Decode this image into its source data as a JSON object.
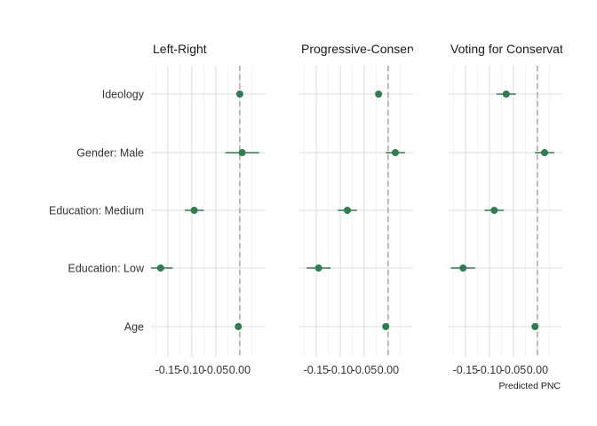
{
  "chart_data": {
    "type": "scatter",
    "subtype": "coefficient-plot-with-error-bars",
    "facets": [
      "Left-Right",
      "Progressive-Conservative",
      "Voting for Conservative"
    ],
    "categories": [
      "Ideology",
      "Gender: Male",
      "Education: Medium",
      "Education: Low",
      "Age"
    ],
    "x_ticks": [
      -0.15,
      -0.1,
      -0.05,
      0.0
    ],
    "x_tick_labels": [
      "-0.15",
      "-0.10",
      "-0.05",
      "0.00"
    ],
    "xlim": [
      -0.185,
      0.052
    ],
    "xlabel": "Predicted PNC",
    "reference_line": 0,
    "point_color": "#2e7d4f",
    "grid": true,
    "series": [
      {
        "values": [
          {
            "estimate": 0.0,
            "low": -0.005,
            "high": 0.005
          },
          {
            "estimate": 0.005,
            "low": -0.03,
            "high": 0.04
          },
          {
            "estimate": -0.095,
            "low": -0.115,
            "high": -0.075
          },
          {
            "estimate": -0.165,
            "low": -0.19,
            "high": -0.14
          },
          {
            "estimate": -0.003,
            "low": -0.008,
            "high": 0.002
          }
        ]
      },
      {
        "values": [
          {
            "estimate": -0.02,
            "low": -0.025,
            "high": -0.015
          },
          {
            "estimate": 0.015,
            "low": -0.005,
            "high": 0.035
          },
          {
            "estimate": -0.085,
            "low": -0.105,
            "high": -0.065
          },
          {
            "estimate": -0.145,
            "low": -0.17,
            "high": -0.12
          },
          {
            "estimate": -0.005,
            "low": -0.01,
            "high": 0.0
          }
        ]
      },
      {
        "values": [
          {
            "estimate": -0.065,
            "low": -0.085,
            "high": -0.045
          },
          {
            "estimate": 0.015,
            "low": -0.005,
            "high": 0.035
          },
          {
            "estimate": -0.09,
            "low": -0.11,
            "high": -0.07
          },
          {
            "estimate": -0.155,
            "low": -0.18,
            "high": -0.13
          },
          {
            "estimate": -0.005,
            "low": -0.01,
            "high": 0.0
          }
        ]
      }
    ]
  }
}
